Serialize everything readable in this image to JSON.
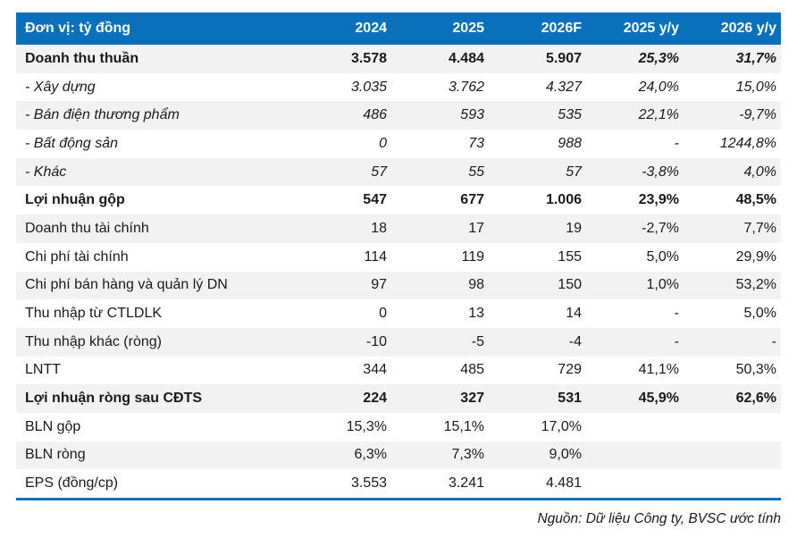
{
  "table": {
    "header": {
      "label": "Đơn vị: tỷ đồng",
      "cols": [
        "2024",
        "2025",
        "2026F",
        "2025 y/y",
        "2026 y/y"
      ]
    },
    "rows": [
      {
        "label": "Doanh thu thuần",
        "style": "bold",
        "yy_style": "bold-italic",
        "values": [
          "3.578",
          "4.484",
          "5.907",
          "25,3%",
          "31,7%"
        ]
      },
      {
        "label": "- Xây dựng",
        "style": "italic",
        "values": [
          "3.035",
          "3.762",
          "4.327",
          "24,0%",
          "15,0%"
        ]
      },
      {
        "label": "- Bán điện thương phẩm",
        "style": "italic",
        "values": [
          "486",
          "593",
          "535",
          "22,1%",
          "-9,7%"
        ]
      },
      {
        "label": "- Bất động sản",
        "style": "italic",
        "values": [
          "0",
          "73",
          "988",
          "-",
          "1244,8%"
        ]
      },
      {
        "label": "- Khác",
        "style": "italic",
        "values": [
          "57",
          "55",
          "57",
          "-3,8%",
          "4,0%"
        ]
      },
      {
        "label": "Lợi nhuận gộp",
        "style": "bold",
        "values": [
          "547",
          "677",
          "1.006",
          "23,9%",
          "48,5%"
        ]
      },
      {
        "label": "Doanh thu tài chính",
        "style": "normal",
        "values": [
          "18",
          "17",
          "19",
          "-2,7%",
          "7,7%"
        ]
      },
      {
        "label": "Chi phí tài chính",
        "style": "normal",
        "values": [
          "114",
          "119",
          "155",
          "5,0%",
          "29,9%"
        ]
      },
      {
        "label": "Chi phí bán hàng và quản lý DN",
        "style": "normal",
        "values": [
          "97",
          "98",
          "150",
          "1,0%",
          "53,2%"
        ]
      },
      {
        "label": "Thu nhập từ CTLDLK",
        "style": "normal",
        "values": [
          "0",
          "13",
          "14",
          "-",
          "5,0%"
        ]
      },
      {
        "label": "Thu nhập khác (ròng)",
        "style": "normal",
        "values": [
          "-10",
          "-5",
          "-4",
          "-",
          "-"
        ]
      },
      {
        "label": "LNTT",
        "style": "normal",
        "values": [
          "344",
          "485",
          "729",
          "41,1%",
          "50,3%"
        ]
      },
      {
        "label": "Lợi nhuận ròng sau CĐTS",
        "style": "bold",
        "values": [
          "224",
          "327",
          "531",
          "45,9%",
          "62,6%"
        ]
      },
      {
        "label": "BLN gộp",
        "style": "normal",
        "values": [
          "15,3%",
          "15,1%",
          "17,0%",
          "",
          ""
        ]
      },
      {
        "label": "BLN ròng",
        "style": "normal",
        "values": [
          "6,3%",
          "7,3%",
          "9,0%",
          "",
          ""
        ]
      },
      {
        "label": "EPS (đồng/cp)",
        "style": "normal",
        "values": [
          "3.553",
          "3.241",
          "4.481",
          "",
          ""
        ]
      }
    ],
    "source": "Nguồn: Dữ liệu Công ty, BVSC ước tính"
  },
  "colors": {
    "header_bg": "#0971BC",
    "row_alt": "#F2F2F2",
    "bottom_border": "#0971BC"
  }
}
